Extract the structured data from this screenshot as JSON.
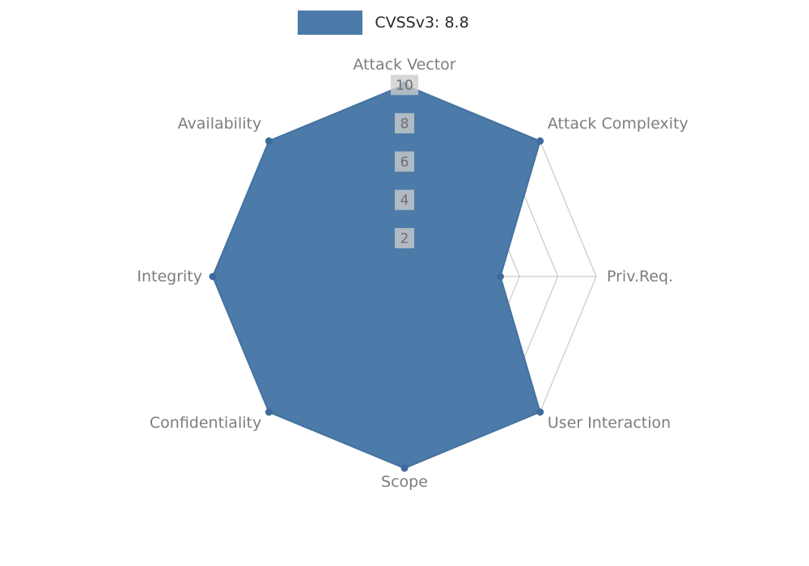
{
  "page": {
    "background": "#ffffff"
  },
  "legend": {
    "label": "CVSSv3: 8.8"
  },
  "chart_data": {
    "type": "radar",
    "title": "CVSSv3: 8.8",
    "categories": [
      "Attack Vector",
      "Attack Complexity",
      "Priv.Req.",
      "User Interaction",
      "Scope",
      "Confidentiality",
      "Integrity",
      "Availability"
    ],
    "series": [
      {
        "name": "CVSSv3: 8.8",
        "values": [
          10,
          10,
          5,
          10,
          10,
          10,
          10,
          10
        ]
      }
    ],
    "ticks": [
      2,
      4,
      6,
      8,
      10
    ],
    "ylim": [
      0,
      10
    ],
    "grid": true,
    "legend_position": "top-center",
    "colors": {
      "series_fill": "#4C7BA9",
      "series_edge": "#44729F",
      "marker": "#3C6B9C",
      "grid_line": "#C9C9C9",
      "tick_text": "#6E6E6E",
      "tick_box": "#CCCCCC",
      "axis_label": "#7D7D7D"
    }
  }
}
